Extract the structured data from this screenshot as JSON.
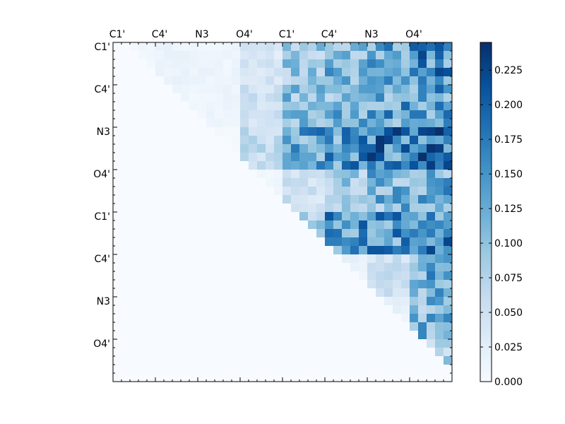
{
  "chart_data": {
    "type": "heatmap",
    "title": "",
    "grid": false,
    "legend": "colorbar-right",
    "colors": {
      "low": "#f7fbff",
      "mid": "#6baed6",
      "high": "#08306b"
    },
    "matrix_size": 40,
    "x_tick_labels": [
      "C1'",
      "C4'",
      "N3",
      "O4'",
      "C1'",
      "C4'",
      "N3",
      "O4'"
    ],
    "y_tick_labels": [
      "C1'",
      "C4'",
      "N3",
      "O4'",
      "C1'",
      "C4'",
      "N3",
      "O4'"
    ],
    "tick_label_positions": [
      0,
      5,
      10,
      15,
      20,
      25,
      30,
      35
    ],
    "colorbar": {
      "min": 0.0,
      "max": 0.245,
      "ticks": [
        0.0,
        0.025,
        0.05,
        0.075,
        0.1,
        0.125,
        0.15,
        0.175,
        0.2,
        0.225
      ],
      "tick_labels": [
        "0.000",
        "0.025",
        "0.050",
        "0.075",
        "0.100",
        "0.125",
        "0.150",
        "0.175",
        "0.200",
        "0.225"
      ]
    },
    "approximate_block_means": {
      "description_rows": "5x5 residue blocks of the upper triangle (block_i,block_j)",
      "values": [
        [
          0.01,
          0.015,
          0.012,
          0.04,
          0.09,
          0.11,
          0.14,
          0.15
        ],
        [
          0.0,
          0.01,
          0.012,
          0.05,
          0.1,
          0.11,
          0.13,
          0.14
        ],
        [
          0.0,
          0.0,
          0.005,
          0.06,
          0.13,
          0.14,
          0.16,
          0.17
        ],
        [
          0.0,
          0.0,
          0.0,
          0.01,
          0.05,
          0.09,
          0.11,
          0.12
        ],
        [
          0.0,
          0.0,
          0.0,
          0.0,
          0.08,
          0.14,
          0.14,
          0.15
        ],
        [
          0.0,
          0.0,
          0.0,
          0.0,
          0.0,
          0.02,
          0.05,
          0.12
        ],
        [
          0.0,
          0.0,
          0.0,
          0.0,
          0.0,
          0.0,
          0.02,
          0.11
        ],
        [
          0.0,
          0.0,
          0.0,
          0.0,
          0.0,
          0.0,
          0.0,
          0.08
        ]
      ]
    }
  }
}
